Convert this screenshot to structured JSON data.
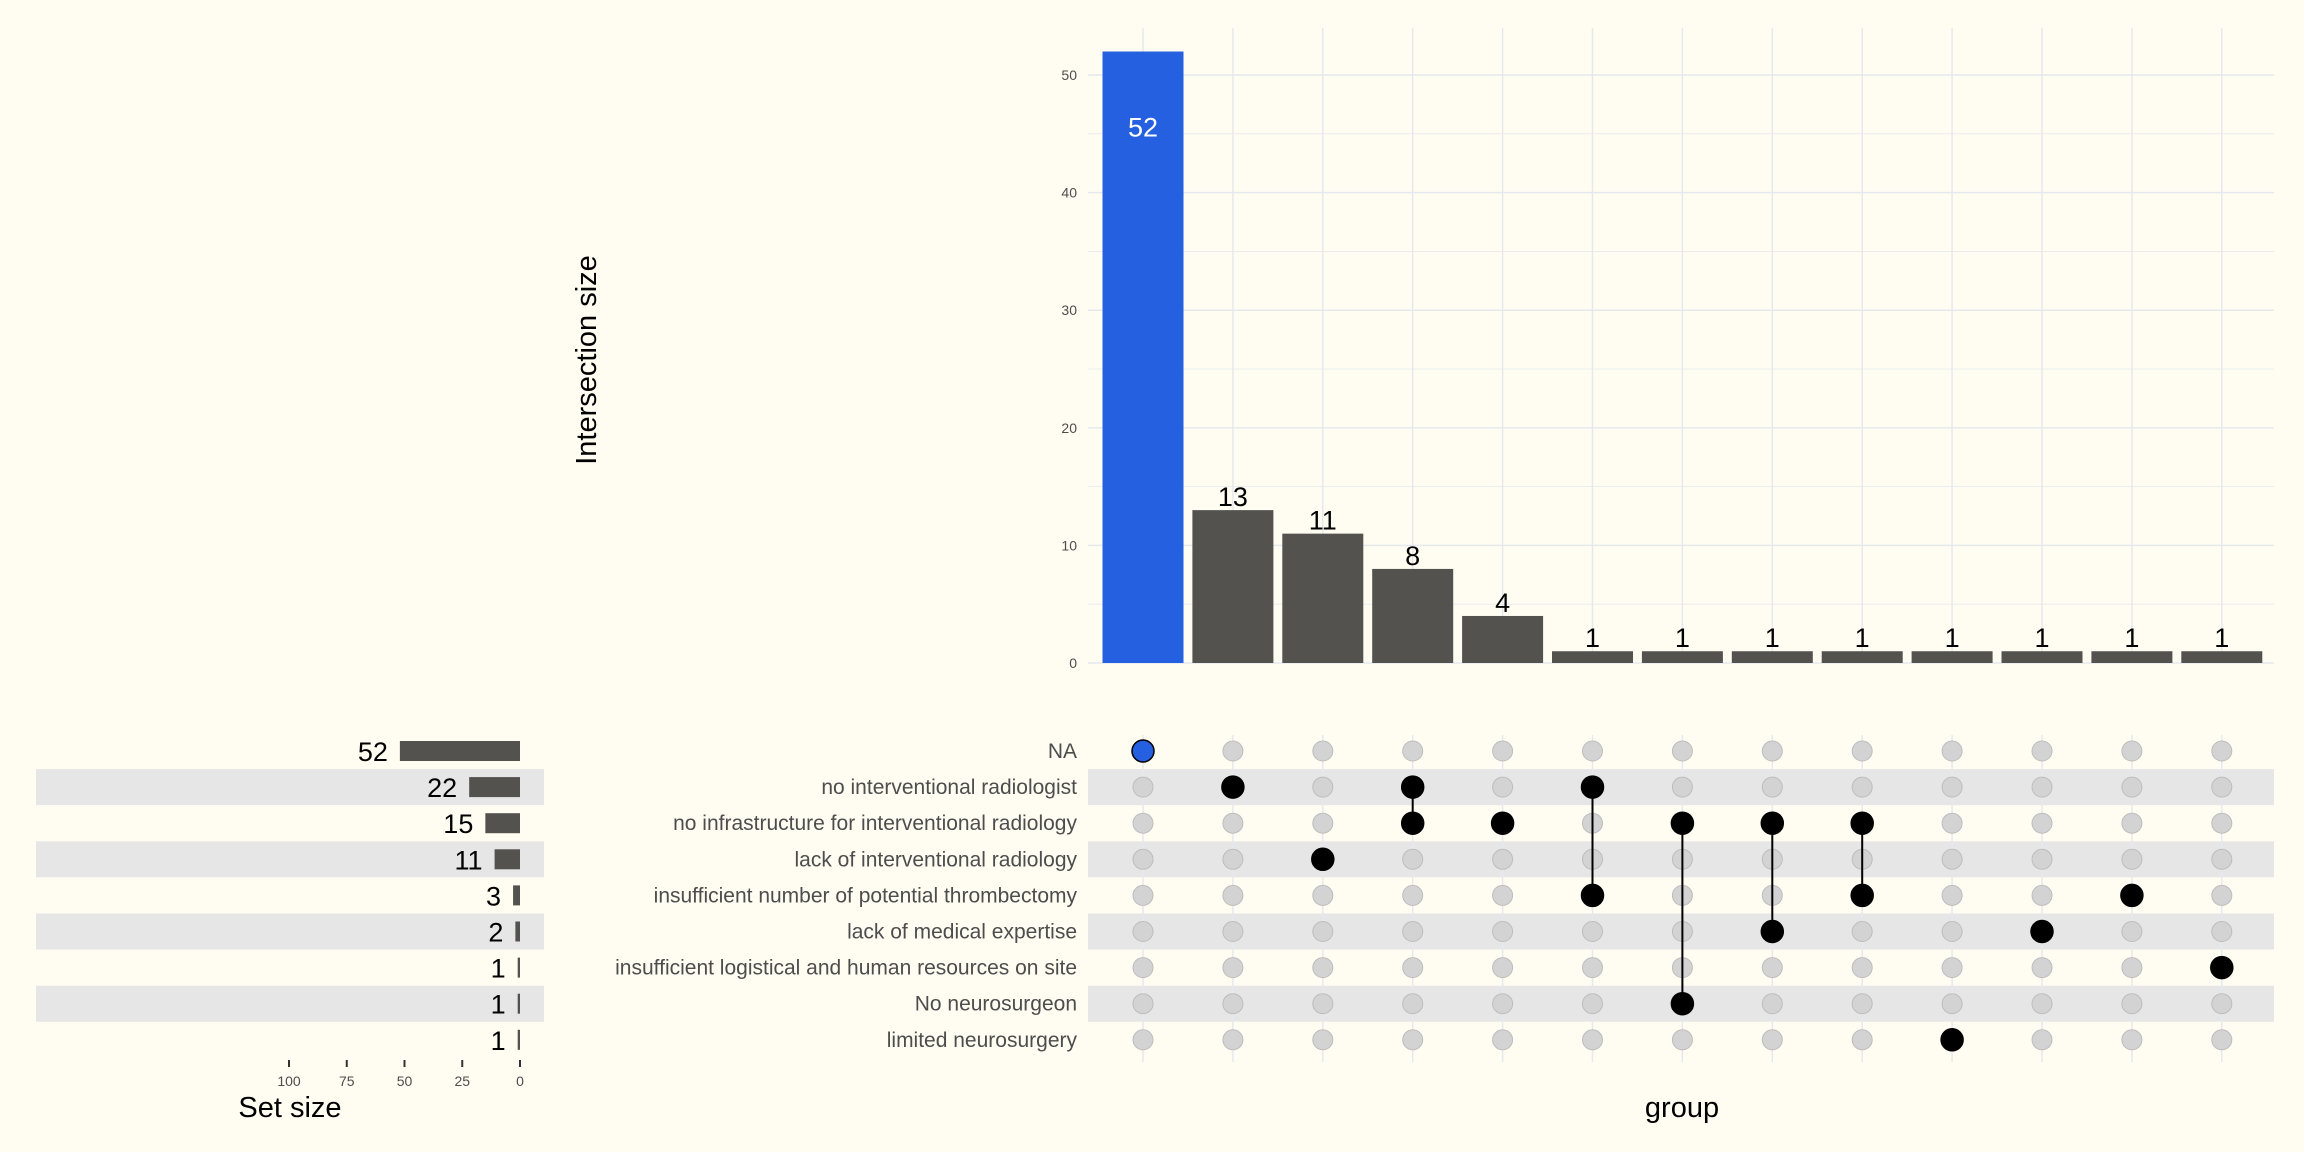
{
  "chart_data": {
    "type": "upset",
    "sets": [
      {
        "name": "NA",
        "size": 52
      },
      {
        "name": "no interventional radiologist",
        "size": 22
      },
      {
        "name": "no infrastructure for interventional radiology",
        "size": 15
      },
      {
        "name": "lack of interventional radiology",
        "size": 11
      },
      {
        "name": "insufficient number of potential thrombectomy",
        "size": 3
      },
      {
        "name": "lack of medical expertise",
        "size": 2
      },
      {
        "name": "insufficient logistical and human resources on site",
        "size": 1
      },
      {
        "name": "No neurosurgeon",
        "size": 1
      },
      {
        "name": "limited neurosurgery",
        "size": 1
      }
    ],
    "intersections": [
      {
        "size": 52,
        "sets": [
          0
        ],
        "highlight": true
      },
      {
        "size": 13,
        "sets": [
          1
        ]
      },
      {
        "size": 11,
        "sets": [
          3
        ]
      },
      {
        "size": 8,
        "sets": [
          1,
          2
        ]
      },
      {
        "size": 4,
        "sets": [
          2
        ]
      },
      {
        "size": 1,
        "sets": [
          1,
          4
        ]
      },
      {
        "size": 1,
        "sets": [
          2,
          7
        ]
      },
      {
        "size": 1,
        "sets": [
          2,
          5
        ]
      },
      {
        "size": 1,
        "sets": [
          2,
          4
        ]
      },
      {
        "size": 1,
        "sets": [
          8
        ]
      },
      {
        "size": 1,
        "sets": [
          5
        ]
      },
      {
        "size": 1,
        "sets": [
          4
        ]
      },
      {
        "size": 1,
        "sets": [
          6
        ]
      }
    ],
    "intersection_axis": {
      "title": "Intersection size",
      "ylim": [
        0,
        54
      ],
      "ticks": [
        0,
        10,
        20,
        30,
        40,
        50
      ]
    },
    "set_size_axis": {
      "title": "Set size",
      "xlim": [
        100,
        0
      ],
      "ticks": [
        100,
        75,
        50,
        25,
        0
      ]
    },
    "matrix_axis_title": "group",
    "colors": {
      "bar": "#54524f",
      "highlight": "#2560e0",
      "dot_on": "#000000",
      "dot_off": "#d3d3d3",
      "stripe": "#e6e6e6",
      "grid": "#e6e8ee"
    }
  }
}
